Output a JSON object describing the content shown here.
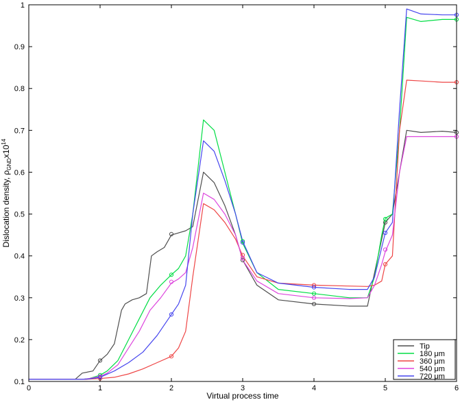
{
  "chart_data": {
    "type": "line",
    "xlabel": "Virtual process time",
    "ylabel": {
      "prefix": "Dislocation density, ",
      "symbol": "ρ",
      "subscript": "GND",
      "mult": "x10",
      "superscript": "14"
    },
    "xlim": [
      0,
      6
    ],
    "ylim": [
      0.1,
      1.0
    ],
    "xticks": [
      "0",
      "1",
      "2",
      "3",
      "4",
      "5",
      "6"
    ],
    "yticks": [
      "0.1",
      "0.2",
      "0.3",
      "0.4",
      "0.5",
      "0.6",
      "0.7",
      "0.8",
      "0.9",
      "1"
    ],
    "grid": false,
    "legend_position": "bottom-right",
    "series": [
      {
        "name": "Tip",
        "color": "#4d4d4d",
        "x": [
          0,
          0.65,
          0.75,
          0.9,
          1.0,
          1.1,
          1.2,
          1.3,
          1.35,
          1.45,
          1.55,
          1.65,
          1.72,
          1.8,
          1.9,
          2.0,
          2.1,
          2.2,
          2.3,
          2.45,
          2.6,
          2.75,
          2.9,
          3.0,
          3.2,
          3.5,
          4.0,
          4.5,
          4.75,
          4.85,
          4.95,
          5.0,
          5.1,
          5.2,
          5.3,
          5.5,
          5.8,
          6.0
        ],
        "y": [
          0.105,
          0.105,
          0.12,
          0.125,
          0.15,
          0.165,
          0.19,
          0.27,
          0.285,
          0.295,
          0.3,
          0.31,
          0.4,
          0.41,
          0.42,
          0.45,
          0.455,
          0.46,
          0.47,
          0.6,
          0.575,
          0.52,
          0.45,
          0.39,
          0.33,
          0.295,
          0.285,
          0.28,
          0.28,
          0.36,
          0.44,
          0.48,
          0.5,
          0.6,
          0.7,
          0.695,
          0.698,
          0.695
        ],
        "markers": [
          [
            1,
            0.15
          ],
          [
            2,
            0.452
          ],
          [
            3,
            0.39
          ],
          [
            4,
            0.285
          ],
          [
            5,
            0.48
          ],
          [
            6,
            0.695
          ]
        ]
      },
      {
        "name": "180 μm",
        "unit_prefix": "180 ",
        "unit_mu": "μ",
        "unit_suffix": "m",
        "color": "#00dd44",
        "x": [
          0,
          0.75,
          0.85,
          1.0,
          1.1,
          1.25,
          1.4,
          1.55,
          1.7,
          1.85,
          2.0,
          2.1,
          2.2,
          2.3,
          2.45,
          2.6,
          2.75,
          2.9,
          3.0,
          3.2,
          3.5,
          4.0,
          4.5,
          4.75,
          4.85,
          4.95,
          5.0,
          5.1,
          5.2,
          5.3,
          5.5,
          5.8,
          6.0
        ],
        "y": [
          0.105,
          0.105,
          0.107,
          0.115,
          0.125,
          0.15,
          0.2,
          0.25,
          0.3,
          0.33,
          0.355,
          0.37,
          0.4,
          0.5,
          0.725,
          0.7,
          0.6,
          0.5,
          0.43,
          0.36,
          0.32,
          0.31,
          0.3,
          0.3,
          0.35,
          0.45,
          0.49,
          0.5,
          0.7,
          0.97,
          0.96,
          0.965,
          0.965
        ],
        "markers": [
          [
            1,
            0.115
          ],
          [
            2,
            0.355
          ],
          [
            3,
            0.435
          ],
          [
            4,
            0.31
          ],
          [
            5,
            0.488
          ],
          [
            6,
            0.965
          ]
        ]
      },
      {
        "name": "360 μm",
        "unit_prefix": "360 ",
        "unit_mu": "μ",
        "unit_suffix": "m",
        "color": "#ee4444",
        "x": [
          0,
          0.8,
          1.0,
          1.2,
          1.4,
          1.6,
          1.8,
          2.0,
          2.1,
          2.2,
          2.3,
          2.45,
          2.6,
          2.75,
          2.9,
          3.0,
          3.2,
          3.5,
          4.0,
          4.5,
          4.75,
          4.85,
          4.95,
          5.0,
          5.1,
          5.2,
          5.3,
          5.5,
          5.8,
          6.0
        ],
        "y": [
          0.105,
          0.105,
          0.107,
          0.11,
          0.118,
          0.13,
          0.145,
          0.16,
          0.18,
          0.22,
          0.35,
          0.525,
          0.51,
          0.48,
          0.44,
          0.4,
          0.35,
          0.335,
          0.33,
          0.328,
          0.327,
          0.33,
          0.34,
          0.38,
          0.4,
          0.7,
          0.82,
          0.818,
          0.815,
          0.815
        ],
        "markers": [
          [
            1,
            0.107
          ],
          [
            2,
            0.16
          ],
          [
            3,
            0.402
          ],
          [
            4,
            0.33
          ],
          [
            5,
            0.38
          ],
          [
            6,
            0.815
          ]
        ]
      },
      {
        "name": "540 μm",
        "unit_prefix": "540 ",
        "unit_mu": "μ",
        "unit_suffix": "m",
        "color": "#dd44dd",
        "x": [
          0,
          0.75,
          0.85,
          1.0,
          1.1,
          1.25,
          1.4,
          1.55,
          1.7,
          1.85,
          2.0,
          2.1,
          2.2,
          2.3,
          2.45,
          2.6,
          2.75,
          2.9,
          3.0,
          3.2,
          3.5,
          4.0,
          4.5,
          4.75,
          4.85,
          4.95,
          5.0,
          5.1,
          5.2,
          5.3,
          5.5,
          5.8,
          6.0
        ],
        "y": [
          0.105,
          0.105,
          0.107,
          0.112,
          0.12,
          0.14,
          0.18,
          0.22,
          0.27,
          0.3,
          0.335,
          0.345,
          0.36,
          0.42,
          0.55,
          0.535,
          0.5,
          0.45,
          0.39,
          0.34,
          0.31,
          0.3,
          0.298,
          0.3,
          0.33,
          0.38,
          0.41,
          0.45,
          0.6,
          0.685,
          0.685,
          0.685,
          0.685
        ],
        "markers": [
          [
            1,
            0.112
          ],
          [
            2,
            0.338
          ],
          [
            3,
            0.395
          ],
          [
            4,
            0.3
          ],
          [
            5,
            0.415
          ],
          [
            6,
            0.685
          ]
        ]
      },
      {
        "name": "720 μm",
        "unit_prefix": "720 ",
        "unit_mu": "μ",
        "unit_suffix": "m",
        "color": "#4444ee",
        "x": [
          0,
          0.75,
          0.85,
          1.0,
          1.2,
          1.4,
          1.6,
          1.8,
          2.0,
          2.1,
          2.2,
          2.3,
          2.45,
          2.6,
          2.75,
          2.9,
          3.0,
          3.2,
          3.5,
          4.0,
          4.5,
          4.75,
          4.85,
          4.95,
          5.0,
          5.1,
          5.2,
          5.3,
          5.5,
          5.8,
          6.0
        ],
        "y": [
          0.105,
          0.105,
          0.106,
          0.11,
          0.125,
          0.145,
          0.17,
          0.21,
          0.26,
          0.285,
          0.33,
          0.5,
          0.675,
          0.65,
          0.58,
          0.5,
          0.435,
          0.36,
          0.335,
          0.325,
          0.32,
          0.32,
          0.35,
          0.42,
          0.455,
          0.48,
          0.75,
          0.99,
          0.978,
          0.976,
          0.976
        ],
        "markers": [
          [
            1,
            0.11
          ],
          [
            2,
            0.26
          ],
          [
            3,
            0.432
          ],
          [
            4,
            0.325
          ],
          [
            5,
            0.455
          ],
          [
            6,
            0.976
          ]
        ]
      }
    ]
  }
}
